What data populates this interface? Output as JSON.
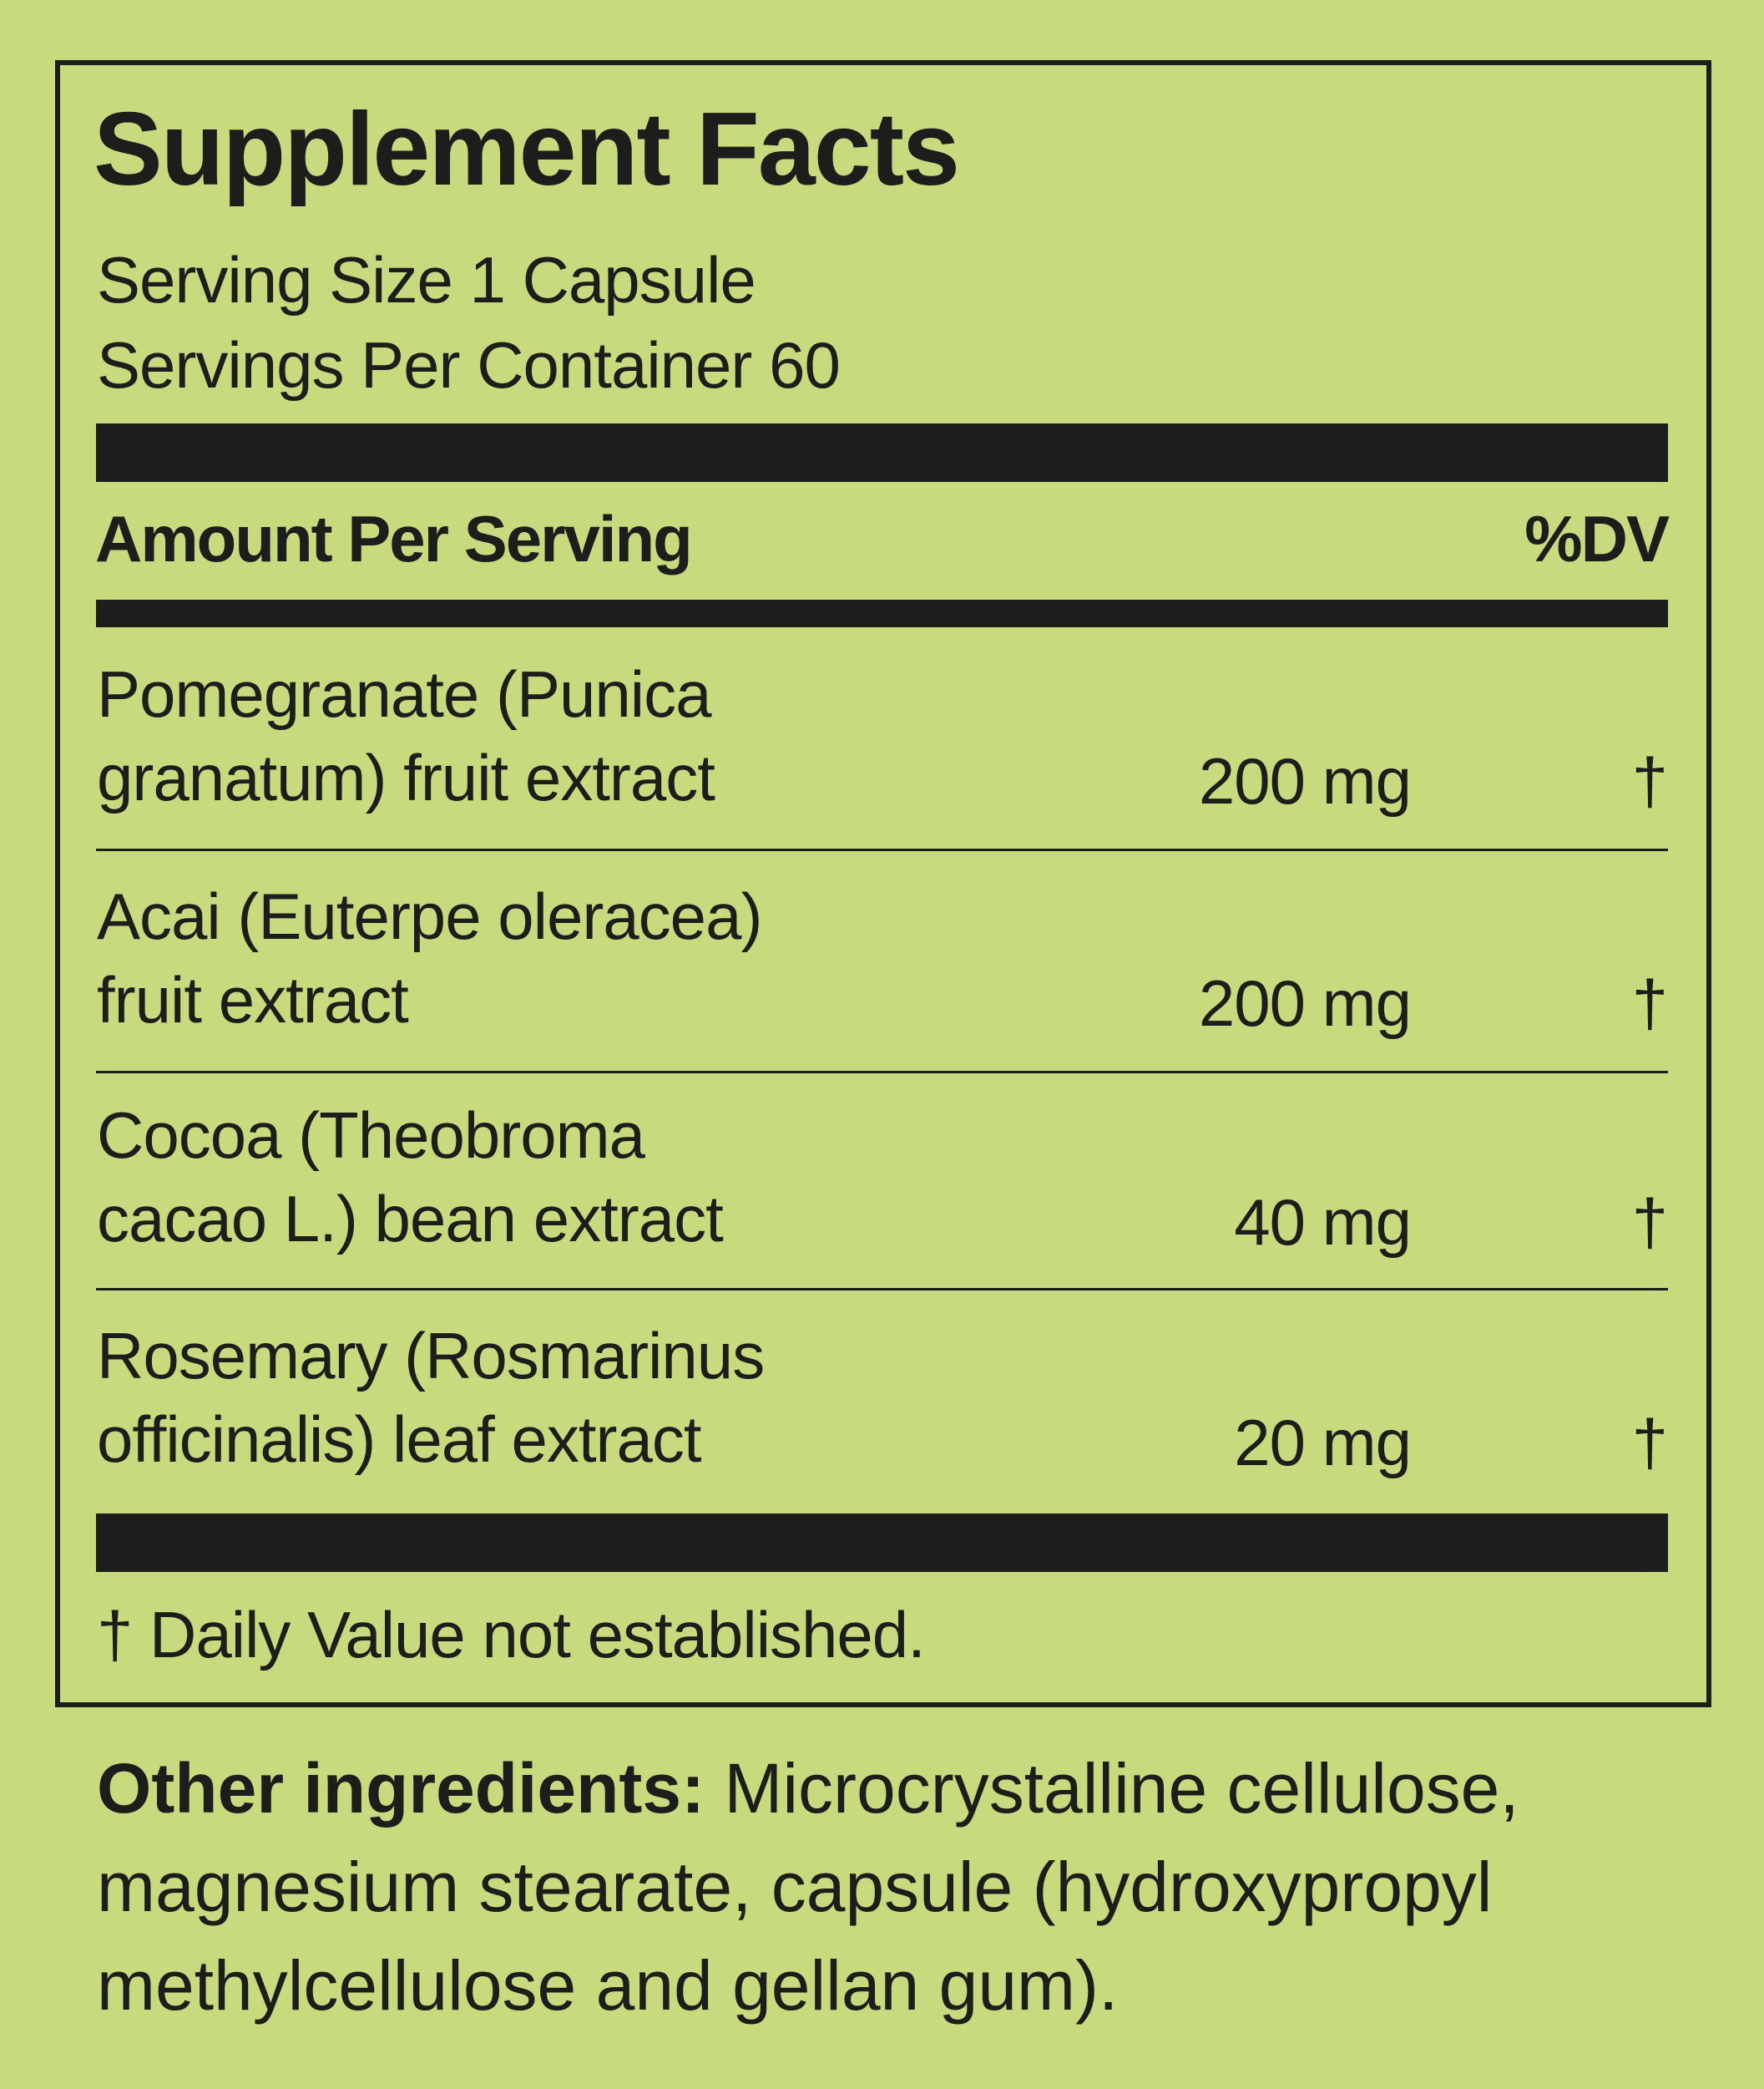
{
  "title": "Supplement Facts",
  "serving_size": "Serving Size 1 Capsule",
  "servings_per_container": "Servings Per Container 60",
  "header": {
    "amount": "Amount Per Serving",
    "dv": "%DV"
  },
  "ingredients": [
    {
      "line1": "Pomegranate (Punica",
      "line2": "granatum) fruit extract",
      "amount": "200 mg",
      "dv": "†"
    },
    {
      "line1": "Acai (Euterpe oleracea)",
      "line2": "fruit extract",
      "amount": "200 mg",
      "dv": "†"
    },
    {
      "line1": "Cocoa (Theobroma",
      "line2": "cacao L.) bean extract",
      "amount": "40 mg",
      "dv": "†"
    },
    {
      "line1": "Rosemary (Rosmarinus",
      "line2": "officinalis) leaf extract",
      "amount": "20 mg",
      "dv": "†"
    }
  ],
  "footnote": "† Daily Value not established.",
  "other_ingredients": {
    "label": "Other ingredients:",
    "text": " Microcrystalline cellulose, magnesium stearate, capsule (hydroxypropyl methylcellulose and gellan gum)."
  },
  "colors": {
    "background": "#c7da7e",
    "ink": "#1d1d1b"
  }
}
